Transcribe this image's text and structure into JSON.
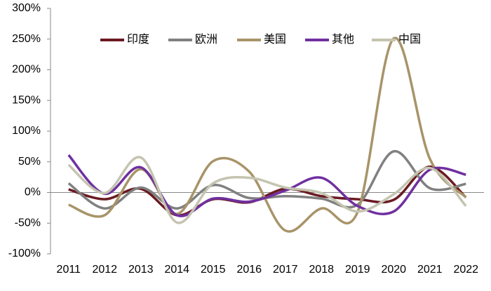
{
  "chart_data": {
    "type": "line",
    "categories": [
      "2011",
      "2012",
      "2013",
      "2014",
      "2015",
      "2016",
      "2017",
      "2018",
      "2019",
      "2020",
      "2021",
      "2022"
    ],
    "series": [
      {
        "name": "印度",
        "color": "#6b1a22",
        "values": [
          5,
          -11,
          6,
          -37,
          -11,
          -16,
          6,
          -6,
          -11,
          -12,
          42,
          -8
        ]
      },
      {
        "name": "欧洲",
        "color": "#808080",
        "values": [
          15,
          -26,
          8,
          -26,
          12,
          -9,
          -6,
          -10,
          -20,
          67,
          7,
          14
        ]
      },
      {
        "name": "美国",
        "color": "#a89469",
        "values": [
          -20,
          -37,
          38,
          -35,
          51,
          34,
          -62,
          -26,
          -32,
          251,
          55,
          -8
        ]
      },
      {
        "name": "其他",
        "color": "#7030a0",
        "values": [
          61,
          -2,
          41,
          -37,
          -10,
          -15,
          3,
          24,
          -22,
          -31,
          37,
          29
        ]
      },
      {
        "name": "中国",
        "color": "#c4c4b0",
        "values": [
          45,
          -1,
          57,
          -49,
          15,
          24,
          8,
          -1,
          -31,
          -3,
          40,
          -22
        ]
      }
    ],
    "ylim": [
      -100,
      300
    ],
    "yticks": [
      {
        "value": -100,
        "label": "-100%"
      },
      {
        "value": -50,
        "label": "-50%"
      },
      {
        "value": 0,
        "label": "0%"
      },
      {
        "value": 50,
        "label": "50%"
      },
      {
        "value": 100,
        "label": "100%"
      },
      {
        "value": 150,
        "label": "150%"
      },
      {
        "value": 200,
        "label": "200%"
      },
      {
        "value": 250,
        "label": "250%"
      },
      {
        "value": 300,
        "label": "300%"
      }
    ],
    "legend": "top"
  }
}
